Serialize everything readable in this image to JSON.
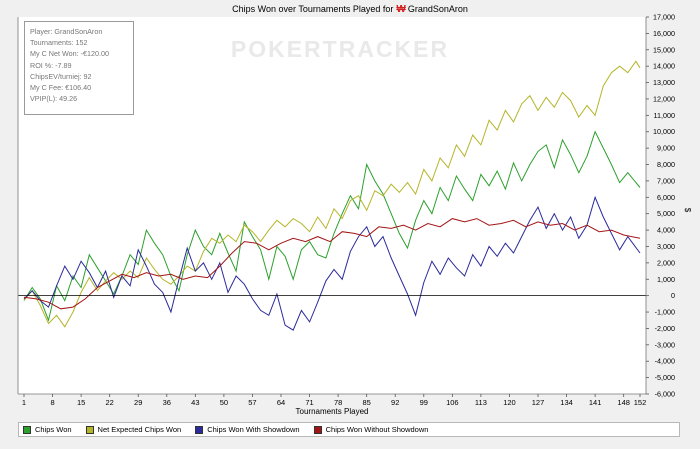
{
  "chart_data": {
    "type": "line",
    "title_prefix": "Chips Won over Tournaments Played for",
    "player_title": "GrandSonAron",
    "xlabel": "Tournaments Played",
    "ylabel": "$",
    "xlim": [
      1,
      152
    ],
    "ylim": [
      -6000,
      17000
    ],
    "x_ticks": [
      1,
      8,
      15,
      22,
      29,
      36,
      43,
      50,
      57,
      64,
      71,
      78,
      85,
      92,
      99,
      106,
      113,
      120,
      127,
      134,
      141,
      148,
      152
    ],
    "y_ticks": [
      -6000,
      -5000,
      -4000,
      -3000,
      -2000,
      -1000,
      0,
      1000,
      2000,
      3000,
      4000,
      5000,
      6000,
      7000,
      8000,
      9000,
      10000,
      11000,
      12000,
      13000,
      14000,
      15000,
      16000,
      17000
    ],
    "y_tick_labels": [
      "-6,000",
      "-5,000",
      "-4,000",
      "-3,000",
      "-2,000",
      "-1,000",
      "0",
      "1,000",
      "2,000",
      "3,000",
      "4,000",
      "5,000",
      "6,000",
      "7,000",
      "8,000",
      "9,000",
      "10,000",
      "11,000",
      "12,000",
      "13,000",
      "14,000",
      "15,000",
      "16,000",
      "17,000"
    ],
    "grid": false,
    "legend_position": "bottom",
    "series": [
      {
        "name": "Chips Won",
        "color": "#2ca02c",
        "points": [
          [
            1,
            -300
          ],
          [
            3,
            500
          ],
          [
            5,
            -200
          ],
          [
            7,
            -1500
          ],
          [
            9,
            600
          ],
          [
            11,
            -300
          ],
          [
            13,
            1200
          ],
          [
            15,
            500
          ],
          [
            17,
            2500
          ],
          [
            19,
            1700
          ],
          [
            21,
            900
          ],
          [
            23,
            100
          ],
          [
            25,
            1200
          ],
          [
            27,
            2500
          ],
          [
            29,
            1900
          ],
          [
            31,
            4000
          ],
          [
            33,
            3200
          ],
          [
            35,
            2500
          ],
          [
            37,
            1200
          ],
          [
            39,
            300
          ],
          [
            41,
            2500
          ],
          [
            43,
            4000
          ],
          [
            45,
            3000
          ],
          [
            47,
            2500
          ],
          [
            49,
            3800
          ],
          [
            51,
            2600
          ],
          [
            53,
            1500
          ],
          [
            55,
            4500
          ],
          [
            57,
            3600
          ],
          [
            59,
            2800
          ],
          [
            61,
            1000
          ],
          [
            63,
            3000
          ],
          [
            65,
            2400
          ],
          [
            67,
            1000
          ],
          [
            69,
            2800
          ],
          [
            71,
            3300
          ],
          [
            73,
            2500
          ],
          [
            75,
            2300
          ],
          [
            77,
            3800
          ],
          [
            79,
            5000
          ],
          [
            81,
            6100
          ],
          [
            83,
            5300
          ],
          [
            85,
            8000
          ],
          [
            87,
            7000
          ],
          [
            89,
            6200
          ],
          [
            91,
            5000
          ],
          [
            93,
            3800
          ],
          [
            95,
            2900
          ],
          [
            97,
            4600
          ],
          [
            99,
            5800
          ],
          [
            101,
            5000
          ],
          [
            103,
            6600
          ],
          [
            105,
            5800
          ],
          [
            107,
            7300
          ],
          [
            109,
            6500
          ],
          [
            111,
            5800
          ],
          [
            113,
            7400
          ],
          [
            115,
            6700
          ],
          [
            117,
            7600
          ],
          [
            119,
            6500
          ],
          [
            121,
            8100
          ],
          [
            123,
            7000
          ],
          [
            125,
            8000
          ],
          [
            127,
            8800
          ],
          [
            129,
            9200
          ],
          [
            131,
            7800
          ],
          [
            133,
            9500
          ],
          [
            135,
            8600
          ],
          [
            137,
            7500
          ],
          [
            139,
            8500
          ],
          [
            141,
            10000
          ],
          [
            143,
            9000
          ],
          [
            145,
            8000
          ],
          [
            147,
            6900
          ],
          [
            149,
            7500
          ],
          [
            152,
            6600
          ]
        ]
      },
      {
        "name": "Net Expected Chips Won",
        "color": "#b5b52a",
        "points": [
          [
            1,
            -300
          ],
          [
            3,
            300
          ],
          [
            5,
            -600
          ],
          [
            7,
            -1700
          ],
          [
            9,
            -1200
          ],
          [
            11,
            -1900
          ],
          [
            13,
            -1000
          ],
          [
            15,
            200
          ],
          [
            17,
            1100
          ],
          [
            19,
            300
          ],
          [
            21,
            900
          ],
          [
            23,
            1400
          ],
          [
            25,
            1000
          ],
          [
            27,
            1500
          ],
          [
            29,
            1100
          ],
          [
            31,
            2300
          ],
          [
            33,
            1600
          ],
          [
            35,
            1000
          ],
          [
            37,
            700
          ],
          [
            39,
            1200
          ],
          [
            41,
            1800
          ],
          [
            43,
            1500
          ],
          [
            45,
            2700
          ],
          [
            47,
            3500
          ],
          [
            49,
            3200
          ],
          [
            51,
            3700
          ],
          [
            53,
            3300
          ],
          [
            55,
            4300
          ],
          [
            57,
            3900
          ],
          [
            59,
            3300
          ],
          [
            61,
            4000
          ],
          [
            63,
            4600
          ],
          [
            65,
            4200
          ],
          [
            67,
            4700
          ],
          [
            69,
            4400
          ],
          [
            71,
            3900
          ],
          [
            73,
            4800
          ],
          [
            75,
            4100
          ],
          [
            77,
            5300
          ],
          [
            79,
            4700
          ],
          [
            81,
            5800
          ],
          [
            83,
            6100
          ],
          [
            85,
            5200
          ],
          [
            87,
            6400
          ],
          [
            89,
            6100
          ],
          [
            91,
            6800
          ],
          [
            93,
            6300
          ],
          [
            95,
            6900
          ],
          [
            97,
            6200
          ],
          [
            99,
            7700
          ],
          [
            101,
            7000
          ],
          [
            103,
            8400
          ],
          [
            105,
            7800
          ],
          [
            107,
            9200
          ],
          [
            109,
            8500
          ],
          [
            111,
            9800
          ],
          [
            113,
            9200
          ],
          [
            115,
            10700
          ],
          [
            117,
            10100
          ],
          [
            119,
            11300
          ],
          [
            121,
            10600
          ],
          [
            123,
            11700
          ],
          [
            125,
            12200
          ],
          [
            127,
            11300
          ],
          [
            129,
            12100
          ],
          [
            131,
            11500
          ],
          [
            133,
            12400
          ],
          [
            135,
            11900
          ],
          [
            137,
            10900
          ],
          [
            139,
            11600
          ],
          [
            141,
            11000
          ],
          [
            143,
            12800
          ],
          [
            145,
            13600
          ],
          [
            147,
            14000
          ],
          [
            149,
            13600
          ],
          [
            151,
            14300
          ],
          [
            152,
            13900
          ]
        ]
      },
      {
        "name": "Chips Won With Showdown",
        "color": "#2b2b9c",
        "points": [
          [
            1,
            -200
          ],
          [
            3,
            300
          ],
          [
            5,
            -300
          ],
          [
            7,
            -700
          ],
          [
            9,
            600
          ],
          [
            11,
            1800
          ],
          [
            13,
            1000
          ],
          [
            15,
            2100
          ],
          [
            17,
            1400
          ],
          [
            19,
            500
          ],
          [
            21,
            1500
          ],
          [
            23,
            -100
          ],
          [
            25,
            1200
          ],
          [
            27,
            600
          ],
          [
            29,
            2800
          ],
          [
            31,
            1800
          ],
          [
            33,
            700
          ],
          [
            35,
            200
          ],
          [
            37,
            -1000
          ],
          [
            39,
            1000
          ],
          [
            41,
            2900
          ],
          [
            43,
            1500
          ],
          [
            45,
            2000
          ],
          [
            47,
            1000
          ],
          [
            49,
            2000
          ],
          [
            51,
            200
          ],
          [
            53,
            1200
          ],
          [
            55,
            700
          ],
          [
            57,
            -200
          ],
          [
            59,
            -900
          ],
          [
            61,
            -1200
          ],
          [
            63,
            100
          ],
          [
            65,
            -1800
          ],
          [
            67,
            -2100
          ],
          [
            69,
            -900
          ],
          [
            71,
            -1600
          ],
          [
            73,
            -400
          ],
          [
            75,
            900
          ],
          [
            77,
            1600
          ],
          [
            79,
            1000
          ],
          [
            81,
            2700
          ],
          [
            83,
            3600
          ],
          [
            85,
            4200
          ],
          [
            87,
            3000
          ],
          [
            89,
            3600
          ],
          [
            91,
            2300
          ],
          [
            93,
            1200
          ],
          [
            95,
            100
          ],
          [
            97,
            -1200
          ],
          [
            99,
            800
          ],
          [
            101,
            2100
          ],
          [
            103,
            1300
          ],
          [
            105,
            2300
          ],
          [
            107,
            1700
          ],
          [
            109,
            1200
          ],
          [
            111,
            2500
          ],
          [
            113,
            1800
          ],
          [
            115,
            3000
          ],
          [
            117,
            2400
          ],
          [
            119,
            3200
          ],
          [
            121,
            2600
          ],
          [
            123,
            3600
          ],
          [
            125,
            4600
          ],
          [
            127,
            5400
          ],
          [
            129,
            4100
          ],
          [
            131,
            5000
          ],
          [
            133,
            4000
          ],
          [
            135,
            4800
          ],
          [
            137,
            3500
          ],
          [
            139,
            4300
          ],
          [
            141,
            6000
          ],
          [
            143,
            4800
          ],
          [
            145,
            3800
          ],
          [
            147,
            2800
          ],
          [
            149,
            3600
          ],
          [
            152,
            2600
          ]
        ]
      },
      {
        "name": "Chips Won Without Showdown",
        "color": "#a31515",
        "points": [
          [
            1,
            -100
          ],
          [
            4,
            -200
          ],
          [
            7,
            -400
          ],
          [
            10,
            -800
          ],
          [
            13,
            -700
          ],
          [
            16,
            -200
          ],
          [
            19,
            500
          ],
          [
            22,
            900
          ],
          [
            25,
            1300
          ],
          [
            28,
            1100
          ],
          [
            31,
            1400
          ],
          [
            34,
            1200
          ],
          [
            37,
            1300
          ],
          [
            40,
            1000
          ],
          [
            43,
            1200
          ],
          [
            46,
            1100
          ],
          [
            49,
            1800
          ],
          [
            52,
            2600
          ],
          [
            55,
            3300
          ],
          [
            58,
            3200
          ],
          [
            61,
            2800
          ],
          [
            64,
            3200
          ],
          [
            67,
            3500
          ],
          [
            70,
            3300
          ],
          [
            73,
            3600
          ],
          [
            76,
            3300
          ],
          [
            79,
            3900
          ],
          [
            82,
            3800
          ],
          [
            85,
            3600
          ],
          [
            88,
            4200
          ],
          [
            91,
            4100
          ],
          [
            94,
            4300
          ],
          [
            97,
            4000
          ],
          [
            100,
            4400
          ],
          [
            103,
            4200
          ],
          [
            106,
            4700
          ],
          [
            109,
            4500
          ],
          [
            112,
            4700
          ],
          [
            115,
            4300
          ],
          [
            118,
            4400
          ],
          [
            121,
            4600
          ],
          [
            124,
            4200
          ],
          [
            127,
            4500
          ],
          [
            130,
            4300
          ],
          [
            133,
            4400
          ],
          [
            136,
            4000
          ],
          [
            139,
            4300
          ],
          [
            142,
            3900
          ],
          [
            145,
            4000
          ],
          [
            148,
            3700
          ],
          [
            152,
            3500
          ]
        ]
      }
    ]
  },
  "stats": [
    "Player: GrandSonAron",
    "Tournaments: 152",
    "My C Net Won: -€120.00",
    "ROI %: -7.89",
    "ChipsEV/turniej: 92",
    "My C Fee: €106.40",
    "VPIP(L): 49.26"
  ],
  "watermark": "POKERTRACKER",
  "colors": {
    "plot_bg": "#ffffff",
    "page_bg": "#f0f0f0",
    "zero_line": "#000000"
  }
}
